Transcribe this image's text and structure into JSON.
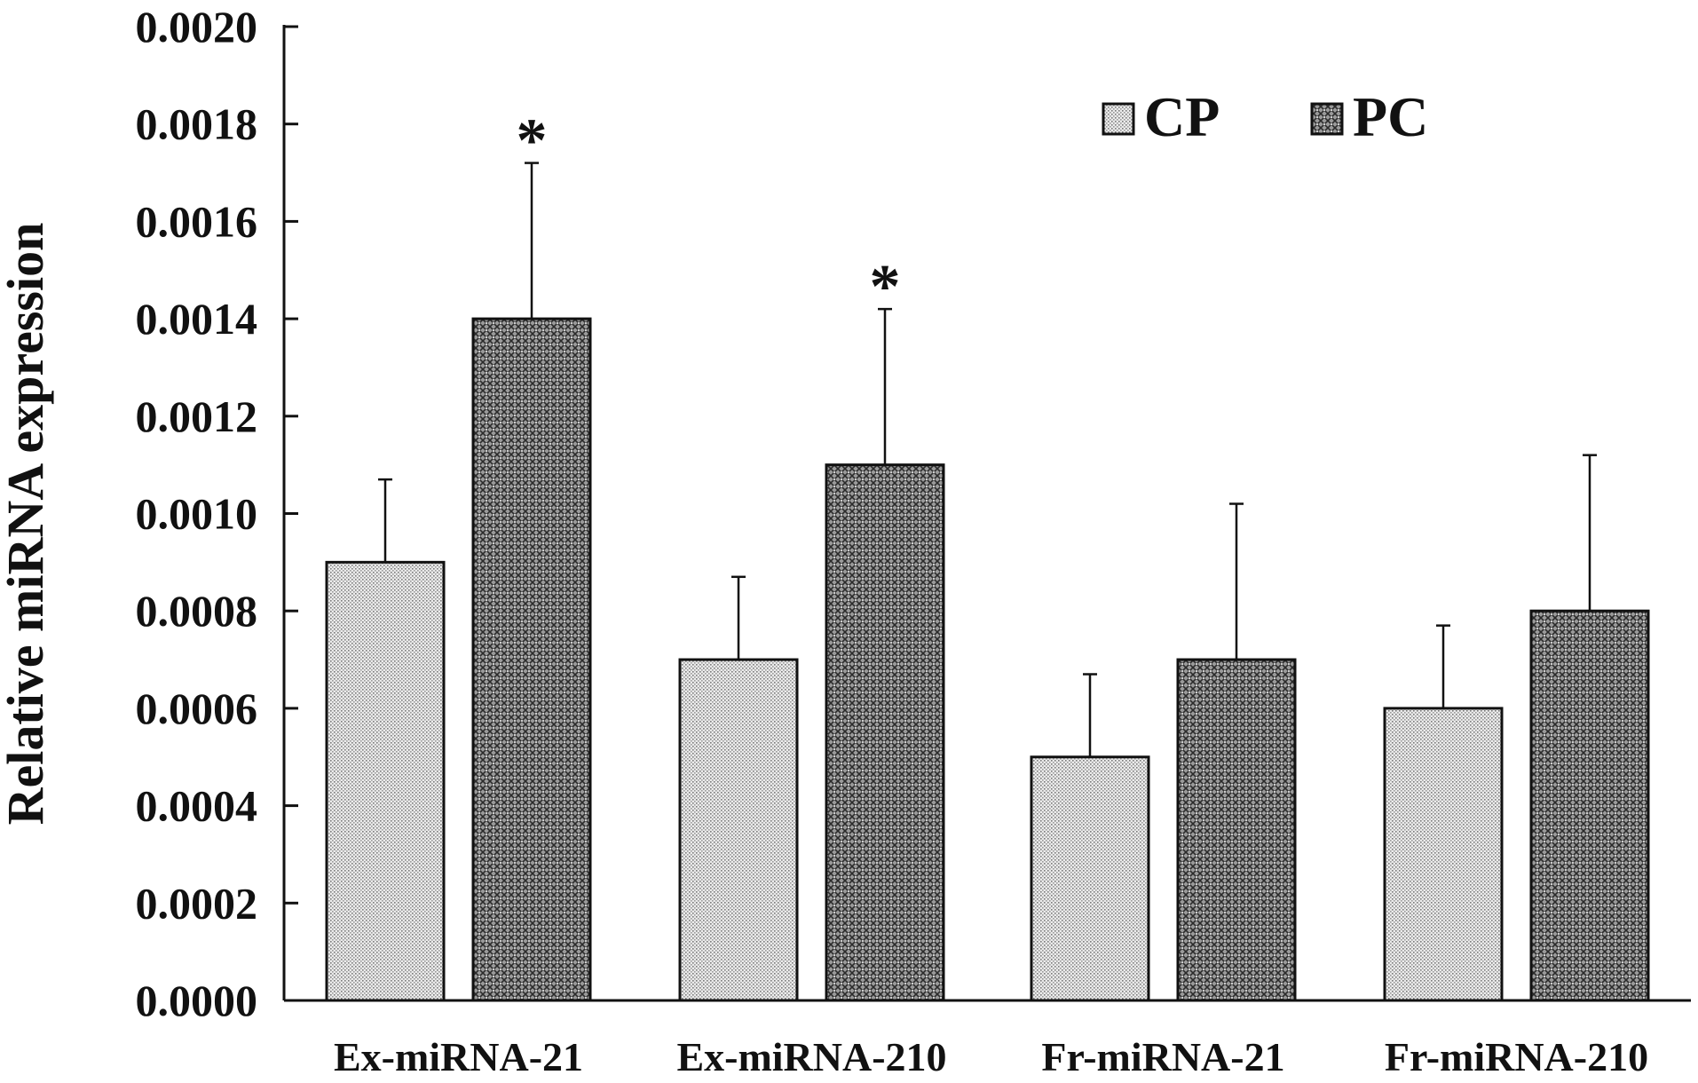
{
  "chart_data": {
    "type": "bar",
    "title": "",
    "xlabel": "",
    "ylabel": "Relative miRNA expression",
    "ylim": [
      0,
      0.002
    ],
    "yticks": [
      "0.0000",
      "0.0002",
      "0.0004",
      "0.0006",
      "0.0008",
      "0.0010",
      "0.0012",
      "0.0014",
      "0.0016",
      "0.0018",
      "0.0020"
    ],
    "categories": [
      "Ex-miRNA-21",
      "Ex-miRNA-210",
      "Fr-miRNA-21",
      "Fr-miRNA-210"
    ],
    "legend_position": "top-right",
    "grid": false,
    "series": [
      {
        "name": "CP",
        "pattern": "fine-dots",
        "values": [
          0.0009,
          0.0007,
          0.0005,
          0.0006
        ],
        "errors": [
          0.00017,
          0.00017,
          0.00017,
          0.00017
        ],
        "significance": [
          "",
          "",
          "",
          ""
        ]
      },
      {
        "name": "PC",
        "pattern": "crosshatch",
        "values": [
          0.0014,
          0.0011,
          0.0007,
          0.0008
        ],
        "errors": [
          0.00032,
          0.00032,
          0.00032,
          0.00032
        ],
        "significance": [
          "*",
          "*",
          "",
          ""
        ]
      }
    ]
  }
}
